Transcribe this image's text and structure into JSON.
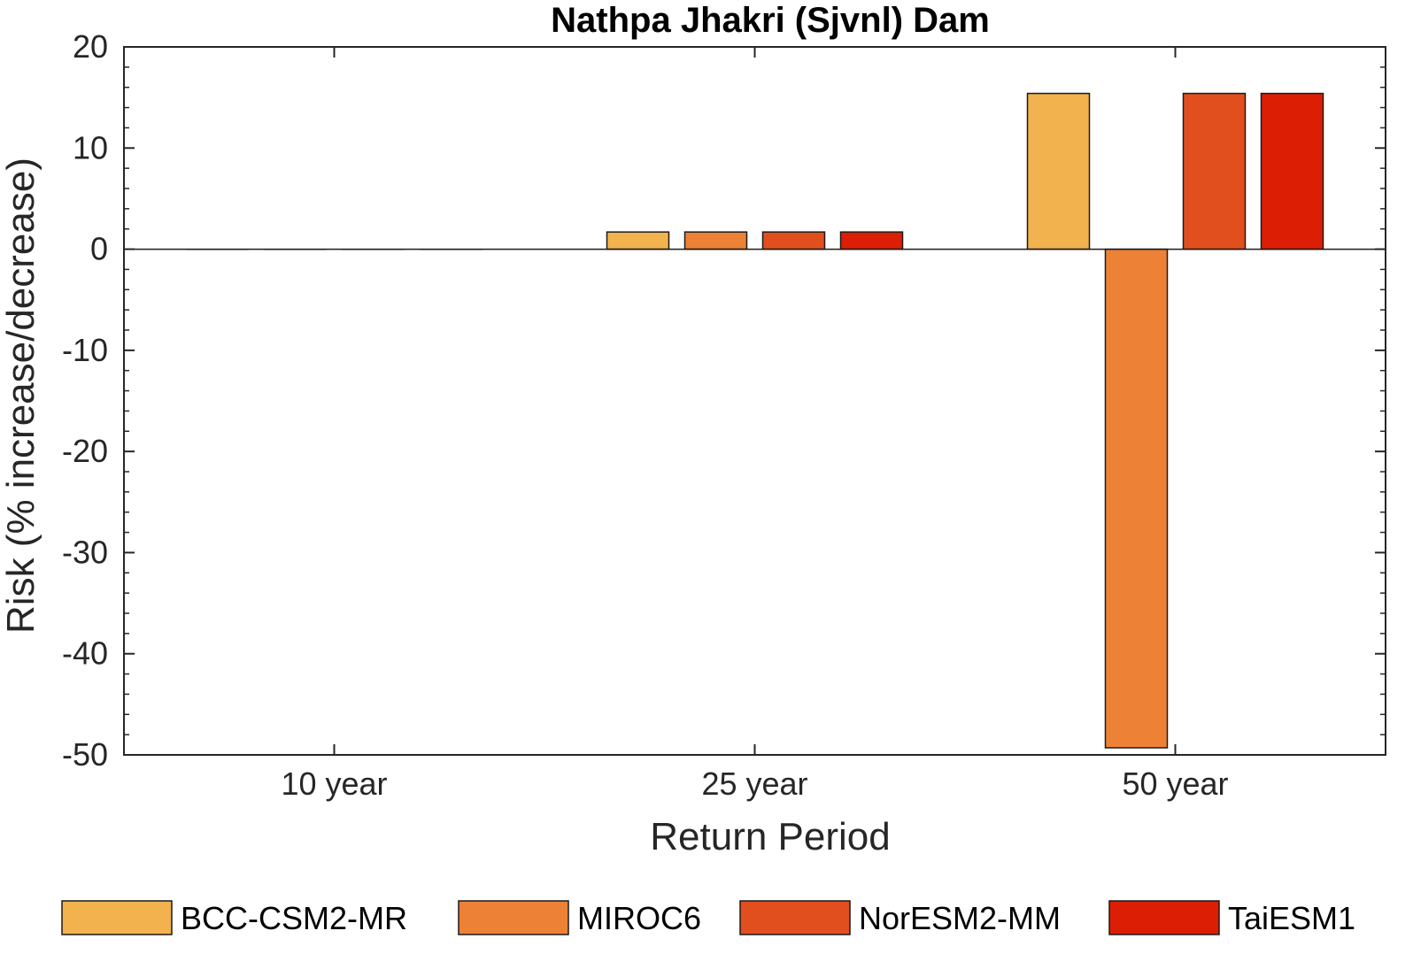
{
  "chart_data": {
    "type": "bar",
    "title": "Nathpa Jhakri (Sjvnl) Dam",
    "xlabel": "Return Period",
    "ylabel": "Risk (% increase/decrease)",
    "categories": [
      "10 year",
      "25 year",
      "50 year"
    ],
    "ylim": [
      -50,
      20
    ],
    "yticks": [
      20,
      10,
      0,
      -10,
      -20,
      -30,
      -40,
      -50
    ],
    "grid": false,
    "legend_position": "bottom",
    "series": [
      {
        "name": "BCC-CSM2-MR",
        "color": "#F2B24E",
        "values": [
          0,
          1.7,
          15.4
        ]
      },
      {
        "name": "MIROC6",
        "color": "#ED8136",
        "values": [
          0,
          1.7,
          -49.3
        ]
      },
      {
        "name": "NorESM2-MM",
        "color": "#E14F1F",
        "values": [
          0,
          1.7,
          15.4
        ]
      },
      {
        "name": "TaiESM1",
        "color": "#DC1E05",
        "values": [
          0,
          1.7,
          15.4
        ]
      }
    ]
  }
}
